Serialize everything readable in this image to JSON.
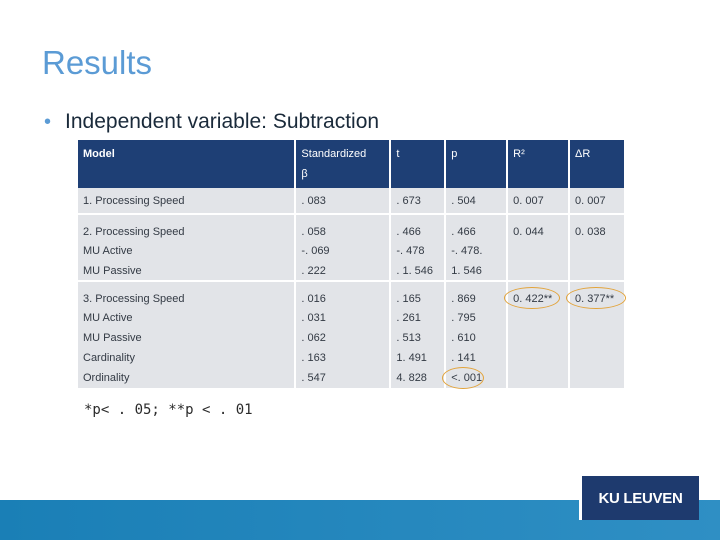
{
  "slide": {
    "title": "Results",
    "bullet": "Independent variable: Subtraction",
    "footnote": "*p< . 05; **p < . 01"
  },
  "table": {
    "headers": {
      "model": "Model",
      "standardized": "Standardized",
      "beta": "β",
      "t": "t",
      "p": "p",
      "r2": "R²",
      "delta_r": "ΔR"
    },
    "rows": [
      {
        "model": "1. Processing Speed",
        "beta": ". 083",
        "t": ". 673",
        "p": ". 504",
        "r2": "0. 007",
        "delta_r": "0. 007"
      },
      {
        "model": "2. Processing Speed",
        "beta": ". 058",
        "t": ". 466",
        "p": ". 466",
        "r2": "0. 044",
        "delta_r": "0. 038"
      },
      {
        "model": "MU Active",
        "beta": "-. 069",
        "t": "-. 478",
        "p": "-. 478.",
        "r2": "",
        "delta_r": ""
      },
      {
        "model": "MU Passive",
        "beta": ". 222",
        "t": ". 1. 546",
        "p": "1. 546",
        "r2": "",
        "delta_r": ""
      },
      {
        "model": "3. Processing Speed",
        "beta": ". 016",
        "t": ". 165",
        "p": ". 869",
        "r2": "0. 422**",
        "delta_r": "0. 377**"
      },
      {
        "model": "MU Active",
        "beta": ". 031",
        "t": ". 261",
        "p": ". 795",
        "r2": "",
        "delta_r": ""
      },
      {
        "model": "MU Passive",
        "beta": ". 062",
        "t": ". 513",
        "p": ". 610",
        "r2": "",
        "delta_r": ""
      },
      {
        "model": "Cardinality",
        "beta": ". 163",
        "t": "1. 491",
        "p": ". 141",
        "r2": "",
        "delta_r": ""
      },
      {
        "model": "Ordinality",
        "beta": ". 547",
        "t": "4. 828",
        "p": "<. 001",
        "r2": "",
        "delta_r": ""
      }
    ]
  },
  "branding": {
    "logo_text": "KU LEUVEN"
  },
  "colors": {
    "title": "#5b9bd5",
    "header_bg": "#1e3f75",
    "cell_bg": "#e2e4e8",
    "highlight": "#e2a33a",
    "footer_bar": "#1a7fb6",
    "logo_bg": "#1e3a6e"
  }
}
